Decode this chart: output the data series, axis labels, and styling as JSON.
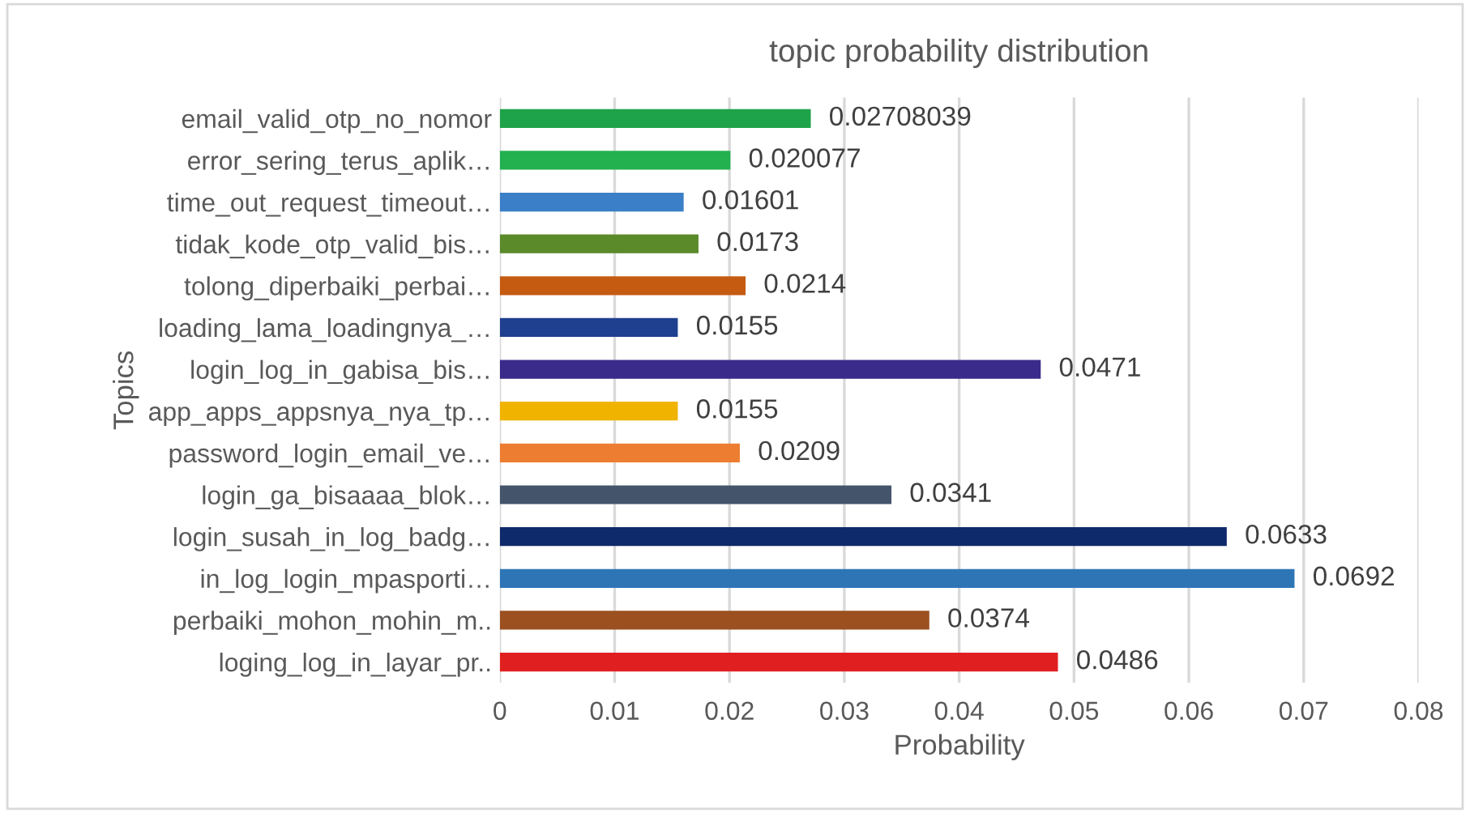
{
  "chart_data": {
    "type": "bar",
    "orientation": "horizontal",
    "title": "topic probability distribution",
    "xlabel": "Probability",
    "ylabel": "Topics",
    "categories": [
      "email_valid_otp_no_nomor",
      "error_sering_terus_aplik…",
      "time_out_request_timeout…",
      "tidak_kode_otp_valid_bis…",
      "tolong_diperbaiki_perbai…",
      "loading_lama_loadingnya_…",
      "login_log_in_gabisa_bis…",
      "app_apps_appsnya_nya_tp…",
      "password_login_email_ve…",
      "login_ga_bisaaaa_blok…",
      "login_susah_in_log_badg…",
      "in_log_login_mpasporti…",
      "perbaiki_mohon_mohin_m..",
      "loging_log_in_layar_pr.."
    ],
    "values": [
      0.02708039,
      0.020077,
      0.01601,
      0.0173,
      0.0214,
      0.0155,
      0.0471,
      0.0155,
      0.0209,
      0.0341,
      0.0633,
      0.0692,
      0.0374,
      0.0486
    ],
    "colors": [
      "#1fa34a",
      "#23b04f",
      "#3a7fc8",
      "#5a8a2a",
      "#c55a11",
      "#1f3f8f",
      "#3a2a8a",
      "#f0b400",
      "#ed7d31",
      "#44546a",
      "#0f2a6a",
      "#2e75b6",
      "#9c5020",
      "#e02020"
    ],
    "data_labels": true,
    "xlim": [
      0,
      0.08
    ],
    "xticks": [
      0,
      0.01,
      0.02,
      0.03,
      0.04,
      0.05,
      0.06,
      0.07,
      0.08
    ],
    "grid": "x"
  }
}
